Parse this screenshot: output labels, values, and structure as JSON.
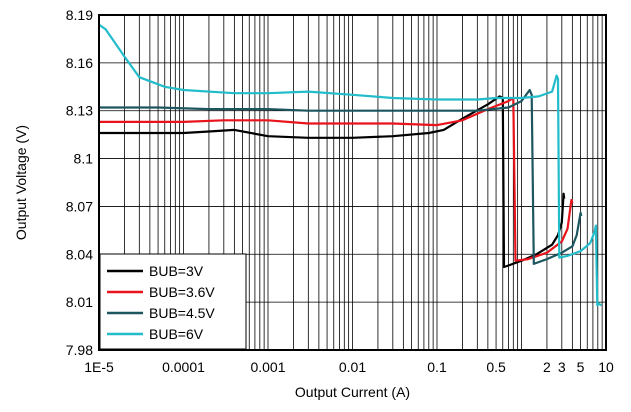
{
  "chart_data": {
    "type": "line",
    "title": "",
    "xlabel": "Output Current (A)",
    "ylabel": "Output Voltage (V)",
    "x_scale": "log",
    "xlim": [
      1e-05,
      10
    ],
    "ylim": [
      7.98,
      8.19
    ],
    "grid": true,
    "legend_position": "bottom-left",
    "x_ticks": [
      {
        "value": 1e-05,
        "label": "1E-5"
      },
      {
        "value": 0.0001,
        "label": "0.0001"
      },
      {
        "value": 0.001,
        "label": "0.001"
      },
      {
        "value": 0.01,
        "label": "0.01"
      },
      {
        "value": 0.1,
        "label": "0.1"
      },
      {
        "value": 0.5,
        "label": "0.5"
      },
      {
        "value": 2,
        "label": "2"
      },
      {
        "value": 3,
        "label": "3"
      },
      {
        "value": 5,
        "label": "5"
      },
      {
        "value": 10,
        "label": "10"
      }
    ],
    "y_ticks": [
      {
        "value": 7.98,
        "label": "7.98"
      },
      {
        "value": 8.01,
        "label": "8.01"
      },
      {
        "value": 8.04,
        "label": "8.04"
      },
      {
        "value": 8.07,
        "label": "8.07"
      },
      {
        "value": 8.1,
        "label": "8.1"
      },
      {
        "value": 8.13,
        "label": "8.13"
      },
      {
        "value": 8.16,
        "label": "8.16"
      },
      {
        "value": 8.19,
        "label": "8.19"
      }
    ],
    "series": [
      {
        "name": "BUB=3V",
        "color": "#000000",
        "points": [
          [
            1e-05,
            8.116
          ],
          [
            0.0001,
            8.116
          ],
          [
            0.0002,
            8.117
          ],
          [
            0.0004,
            8.118
          ],
          [
            0.001,
            8.114
          ],
          [
            0.003,
            8.113
          ],
          [
            0.01,
            8.113
          ],
          [
            0.03,
            8.114
          ],
          [
            0.08,
            8.116
          ],
          [
            0.12,
            8.118
          ],
          [
            0.2,
            8.125
          ],
          [
            0.4,
            8.134
          ],
          [
            0.55,
            8.139
          ],
          [
            0.6,
            8.138
          ],
          [
            0.62,
            8.032
          ],
          [
            0.7,
            8.033
          ],
          [
            1.0,
            8.036
          ],
          [
            1.5,
            8.04
          ],
          [
            2.3,
            8.046
          ],
          [
            2.7,
            8.052
          ],
          [
            3.0,
            8.06
          ],
          [
            3.15,
            8.078
          ],
          [
            3.2,
            8.075
          ]
        ]
      },
      {
        "name": "BUB=3.6V",
        "color": "#e8131b",
        "points": [
          [
            1e-05,
            8.123
          ],
          [
            0.0001,
            8.123
          ],
          [
            0.0003,
            8.124
          ],
          [
            0.001,
            8.124
          ],
          [
            0.003,
            8.122
          ],
          [
            0.01,
            8.122
          ],
          [
            0.03,
            8.122
          ],
          [
            0.1,
            8.121
          ],
          [
            0.2,
            8.124
          ],
          [
            0.4,
            8.131
          ],
          [
            0.7,
            8.136
          ],
          [
            0.8,
            8.138
          ],
          [
            0.85,
            8.036
          ],
          [
            1.2,
            8.037
          ],
          [
            2.0,
            8.041
          ],
          [
            3.0,
            8.048
          ],
          [
            3.5,
            8.056
          ],
          [
            3.9,
            8.074
          ],
          [
            4.0,
            8.072
          ]
        ]
      },
      {
        "name": "BUB=4.5V",
        "color": "#1e5660",
        "points": [
          [
            1e-05,
            8.132
          ],
          [
            5e-05,
            8.132
          ],
          [
            0.0002,
            8.131
          ],
          [
            0.001,
            8.131
          ],
          [
            0.003,
            8.13
          ],
          [
            0.01,
            8.13
          ],
          [
            0.03,
            8.13
          ],
          [
            0.1,
            8.13
          ],
          [
            0.3,
            8.13
          ],
          [
            0.7,
            8.132
          ],
          [
            1.0,
            8.136
          ],
          [
            1.25,
            8.143
          ],
          [
            1.32,
            8.14
          ],
          [
            1.4,
            8.034
          ],
          [
            2.0,
            8.037
          ],
          [
            3.0,
            8.041
          ],
          [
            4.0,
            8.045
          ],
          [
            4.5,
            8.052
          ],
          [
            5.0,
            8.066
          ],
          [
            5.1,
            8.064
          ]
        ]
      },
      {
        "name": "BUB=6V",
        "color": "#22bccb",
        "points": [
          [
            1e-05,
            8.184
          ],
          [
            1.2e-05,
            8.181
          ],
          [
            2e-05,
            8.164
          ],
          [
            3e-05,
            8.151
          ],
          [
            6e-05,
            8.145
          ],
          [
            0.0001,
            8.143
          ],
          [
            0.0004,
            8.141
          ],
          [
            0.001,
            8.141
          ],
          [
            0.003,
            8.142
          ],
          [
            0.01,
            8.14
          ],
          [
            0.03,
            8.138
          ],
          [
            0.1,
            8.137
          ],
          [
            0.3,
            8.137
          ],
          [
            0.5,
            8.138
          ],
          [
            1.0,
            8.138
          ],
          [
            1.6,
            8.139
          ],
          [
            2.3,
            8.142
          ],
          [
            2.6,
            8.152
          ],
          [
            2.7,
            8.15
          ],
          [
            2.8,
            8.038
          ],
          [
            3.5,
            8.039
          ],
          [
            5.0,
            8.042
          ],
          [
            6.5,
            8.047
          ],
          [
            7.3,
            8.054
          ],
          [
            7.6,
            8.058
          ],
          [
            7.9,
            8.008
          ],
          [
            8.2,
            8.009
          ],
          [
            8.8,
            8.008
          ]
        ]
      }
    ]
  }
}
